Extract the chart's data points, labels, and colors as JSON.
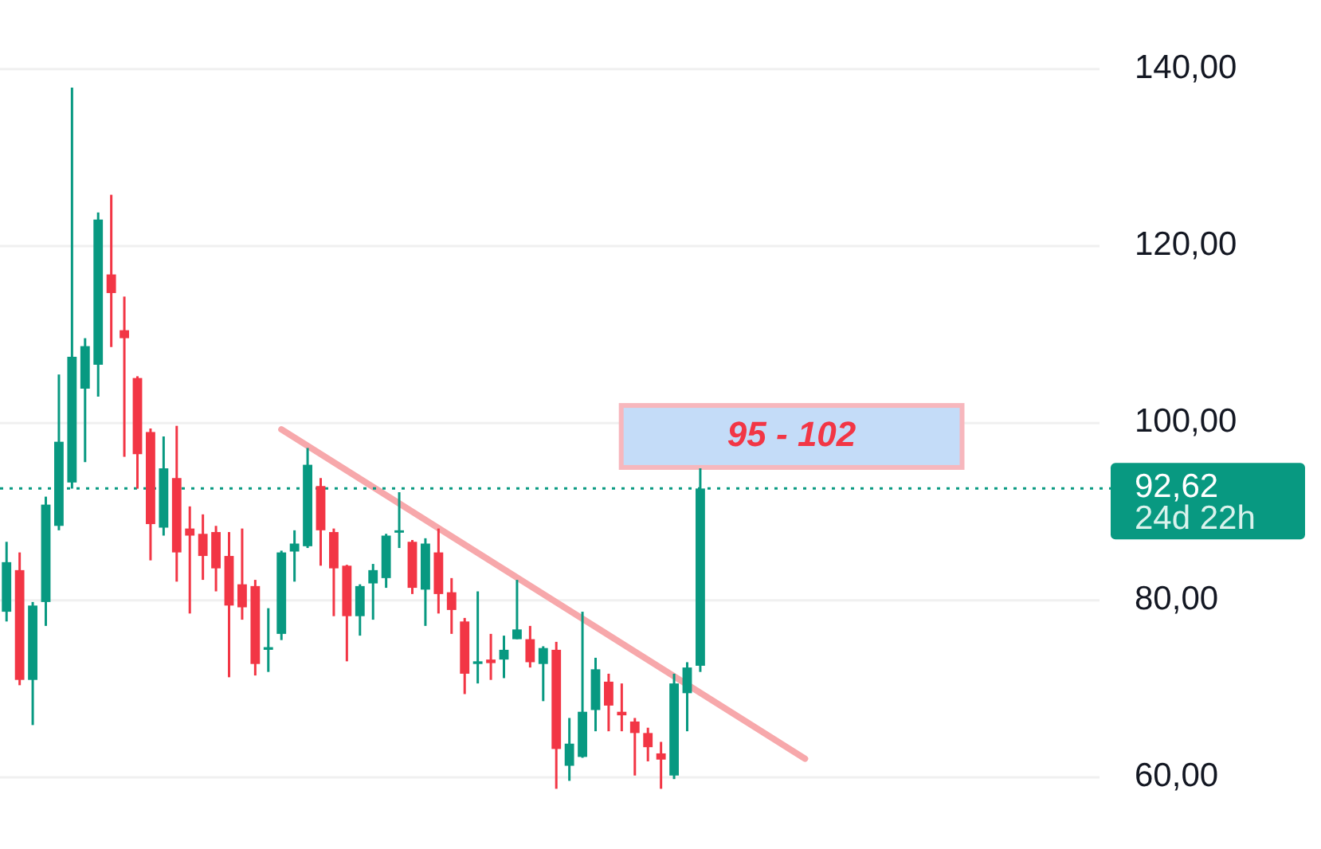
{
  "chart_data": {
    "type": "candlestick",
    "categories": [
      null,
      null,
      null,
      null,
      null,
      null,
      null,
      null,
      null,
      null,
      null,
      null,
      null,
      null,
      null,
      null,
      null,
      null,
      null,
      null,
      null,
      null,
      null,
      null,
      null,
      null,
      null,
      null,
      null,
      null,
      null,
      null,
      null,
      null,
      null,
      null,
      null,
      null,
      null,
      null,
      null,
      null,
      null,
      null,
      null,
      null,
      null,
      null,
      null,
      null,
      null,
      null,
      null,
      null,
      null,
      null,
      null,
      null,
      null,
      null,
      null,
      null,
      null,
      null,
      null,
      null,
      null,
      null,
      null,
      null,
      null,
      null,
      null,
      null,
      null,
      null,
      null,
      null,
      null,
      null,
      null,
      null,
      null,
      null
    ],
    "ohlc": [
      [
        78.7,
        86.6,
        77.6,
        84.3
      ],
      [
        83.4,
        85.4,
        70.4,
        71.0
      ],
      [
        71.0,
        79.8,
        65.9,
        79.4
      ],
      [
        79.8,
        91.7,
        77.1,
        90.8
      ],
      [
        88.4,
        105.5,
        87.9,
        97.9
      ],
      [
        93.3,
        137.9,
        92.6,
        107.5
      ],
      [
        103.9,
        109.6,
        95.6,
        108.7
      ],
      [
        106.6,
        123.8,
        103.0,
        123.0
      ],
      [
        116.8,
        125.8,
        108.6,
        114.7
      ],
      [
        110.5,
        114.3,
        96.2,
        109.6
      ],
      [
        105.1,
        105.3,
        92.6,
        96.5
      ],
      [
        99.0,
        99.4,
        84.5,
        88.6
      ],
      [
        88.2,
        98.5,
        87.3,
        94.9
      ],
      [
        93.8,
        99.7,
        82.1,
        85.4
      ],
      [
        88.1,
        90.6,
        78.5,
        87.3
      ],
      [
        87.5,
        89.7,
        82.3,
        85.0
      ],
      [
        87.7,
        88.4,
        81.0,
        83.6
      ],
      [
        85.0,
        87.7,
        71.3,
        79.4
      ],
      [
        81.8,
        88.1,
        77.8,
        79.2
      ],
      [
        81.6,
        82.3,
        71.5,
        72.8
      ],
      [
        74.4,
        79.1,
        71.9,
        74.7
      ],
      [
        76.2,
        85.6,
        75.5,
        85.4
      ],
      [
        85.5,
        87.9,
        82.1,
        86.4
      ],
      [
        86.1,
        97.2,
        85.9,
        95.3
      ],
      [
        92.9,
        93.8,
        83.9,
        87.9
      ],
      [
        87.7,
        88.1,
        78.2,
        83.6
      ],
      [
        83.9,
        84.0,
        73.1,
        78.2
      ],
      [
        78.2,
        81.8,
        76.0,
        81.6
      ],
      [
        81.9,
        84.1,
        77.8,
        83.4
      ],
      [
        82.5,
        87.5,
        81.4,
        87.3
      ],
      [
        87.7,
        92.2,
        85.9,
        87.9
      ],
      [
        86.6,
        86.8,
        80.7,
        81.4
      ],
      [
        81.2,
        87.0,
        77.1,
        86.4
      ],
      [
        85.4,
        88.1,
        78.5,
        80.7
      ],
      [
        80.9,
        82.5,
        76.2,
        78.9
      ],
      [
        77.6,
        78.0,
        69.4,
        71.7
      ],
      [
        72.8,
        81.0,
        70.6,
        73.1
      ],
      [
        73.3,
        76.2,
        71.0,
        72.9
      ],
      [
        73.3,
        76.0,
        71.2,
        74.4
      ],
      [
        75.6,
        82.3,
        75.6,
        76.7
      ],
      [
        75.6,
        77.1,
        72.4,
        73.0
      ],
      [
        72.8,
        74.8,
        68.6,
        74.6
      ],
      [
        74.4,
        75.3,
        58.7,
        63.2
      ],
      [
        61.3,
        66.7,
        59.6,
        63.8
      ],
      [
        62.3,
        78.7,
        62.2,
        67.4
      ],
      [
        67.6,
        73.5,
        65.2,
        72.2
      ],
      [
        70.8,
        71.7,
        65.2,
        68.1
      ],
      [
        67.4,
        70.6,
        65.2,
        67.0
      ],
      [
        66.3,
        66.7,
        60.2,
        65.0
      ],
      [
        65.0,
        65.6,
        61.8,
        63.4
      ],
      [
        62.7,
        64.0,
        58.7,
        62.0
      ],
      [
        60.2,
        71.7,
        59.8,
        70.6
      ],
      [
        69.5,
        73.0,
        65.2,
        72.4
      ],
      [
        72.6,
        94.9,
        71.9,
        92.62
      ],
      null,
      null,
      null,
      null,
      null,
      null,
      null,
      null,
      null,
      null,
      null,
      null,
      null,
      null,
      null,
      null,
      null,
      null,
      null,
      null,
      null,
      null,
      null,
      null,
      null,
      null,
      null,
      null,
      null,
      null
    ],
    "colors": [
      "#089981",
      "#f23645",
      "#089981",
      "#089981",
      "#089981",
      "#089981",
      "#089981",
      "#089981",
      "#f23645",
      "#f23645",
      "#f23645",
      "#f23645",
      "#089981",
      "#f23645",
      "#f23645",
      "#f23645",
      "#f23645",
      "#f23645",
      "#f23645",
      "#f23645",
      "#089981",
      "#089981",
      "#089981",
      "#089981",
      "#f23645",
      "#f23645",
      "#f23645",
      "#089981",
      "#089981",
      "#089981",
      "#089981",
      "#f23645",
      "#089981",
      "#f23645",
      "#f23645",
      "#f23645",
      "#089981",
      "#f23645",
      "#089981",
      "#089981",
      "#f23645",
      "#089981",
      "#f23645",
      "#089981",
      "#089981",
      "#089981",
      "#f23645",
      "#f23645",
      "#f23645",
      "#f23645",
      "#f23645",
      "#089981",
      "#089981",
      "#089981",
      null,
      null,
      null,
      null,
      null,
      null,
      null,
      null,
      null,
      null,
      null,
      null,
      null,
      null,
      null,
      null,
      null,
      null,
      null,
      null,
      null,
      null,
      null,
      null,
      null,
      null,
      null,
      null,
      null,
      null
    ],
    "series": [
      {
        "type": "line",
        "color": "#f7a8ab",
        "values": [
          null,
          null,
          null,
          null,
          null,
          null,
          null,
          null,
          null,
          null,
          null,
          null,
          null,
          null,
          null,
          null,
          null,
          null,
          null,
          null,
          null,
          99.3,
          null,
          null,
          null,
          null,
          null,
          null,
          null,
          null,
          null,
          null,
          null,
          null,
          null,
          null,
          null,
          null,
          null,
          null,
          null,
          null,
          null,
          null,
          null,
          null,
          null,
          null,
          null,
          null,
          null,
          null,
          null,
          null,
          null,
          null,
          null,
          null,
          null,
          null,
          null,
          62.1,
          null,
          null,
          null,
          null,
          null,
          null,
          null,
          null,
          null,
          null,
          null,
          null,
          null,
          null,
          null,
          null,
          null,
          null,
          null,
          null,
          null,
          null
        ]
      }
    ],
    "ylim": [
      51.9,
      147.8
    ],
    "yticks": [
      {
        "value": 60,
        "label": "60,00"
      },
      {
        "value": 80,
        "label": "80,00"
      },
      {
        "value": 100,
        "label": "100,00"
      },
      {
        "value": 120,
        "label": "120,00"
      },
      {
        "value": 140,
        "label": "140,00"
      }
    ],
    "tick_labels": "y",
    "grid": "y",
    "bands": [
      {
        "axis": "y",
        "from": 95,
        "to": 102,
        "label": "95 - 102",
        "color": "#c4dcf8"
      }
    ],
    "ref_lines": [
      {
        "axis": "y",
        "value": 92.62,
        "label": "92,62",
        "color": "#089981",
        "line_style": "dotted"
      }
    ],
    "annotations": [
      "24d 22h"
    ]
  }
}
